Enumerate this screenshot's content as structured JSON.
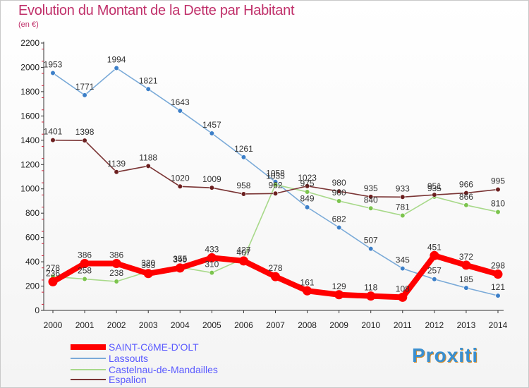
{
  "header": {
    "title": "Evolution du Montant de la Dette par Habitant",
    "subtitle": "(en €)"
  },
  "logo": "Proxiti",
  "colors": {
    "title": "#c0306a",
    "legend_text": "#5a5aff"
  },
  "chart_data": {
    "type": "line",
    "title": "Evolution du Montant de la Dette par Habitant",
    "subtitle": "(en €)",
    "xlabel": "",
    "ylabel": "",
    "ylim": [
      0,
      2200
    ],
    "yticks": [
      0,
      200,
      400,
      600,
      800,
      1000,
      1200,
      1400,
      1600,
      1800,
      2000,
      2200
    ],
    "x": [
      "2000",
      "2001",
      "2002",
      "2003",
      "2004",
      "2005",
      "2006",
      "2007",
      "2008",
      "2009",
      "2010",
      "2011",
      "2012",
      "2013",
      "2014"
    ],
    "grid": false,
    "legend_position": "bottom-left",
    "series": [
      {
        "name": "SAINT-CôME-D'OLT",
        "color": "#ff0000",
        "line_color": "#ff0000",
        "marker_color": "#ff0000",
        "emphasis": true,
        "values": [
          236,
          386,
          386,
          303,
          349,
          433,
          407,
          278,
          161,
          129,
          118,
          108,
          451,
          372,
          298
        ]
      },
      {
        "name": "Lassouts",
        "color": "#6a9ed6",
        "line_color": "#7aaad8",
        "marker_color": "#3c7fc8",
        "emphasis": false,
        "values": [
          1953,
          1771,
          1994,
          1821,
          1643,
          1457,
          1261,
          1058,
          849,
          682,
          507,
          345,
          257,
          185,
          121
        ]
      },
      {
        "name": "Castelnau-de-Mandailles",
        "color": "#9fd27a",
        "line_color": "#a8d98a",
        "marker_color": "#7cc44e",
        "emphasis": false,
        "values": [
          278,
          258,
          238,
          320,
          355,
          310,
          427,
          1035,
          975,
          900,
          840,
          781,
          935,
          866,
          810
        ]
      },
      {
        "name": "Espalion",
        "color": "#7a3434",
        "line_color": "#7a3434",
        "marker_color": "#6b1f1f",
        "emphasis": false,
        "values": [
          1401,
          1398,
          1139,
          1188,
          1020,
          1009,
          958,
          962,
          1023,
          980,
          935,
          933,
          951,
          966,
          995
        ]
      }
    ]
  }
}
